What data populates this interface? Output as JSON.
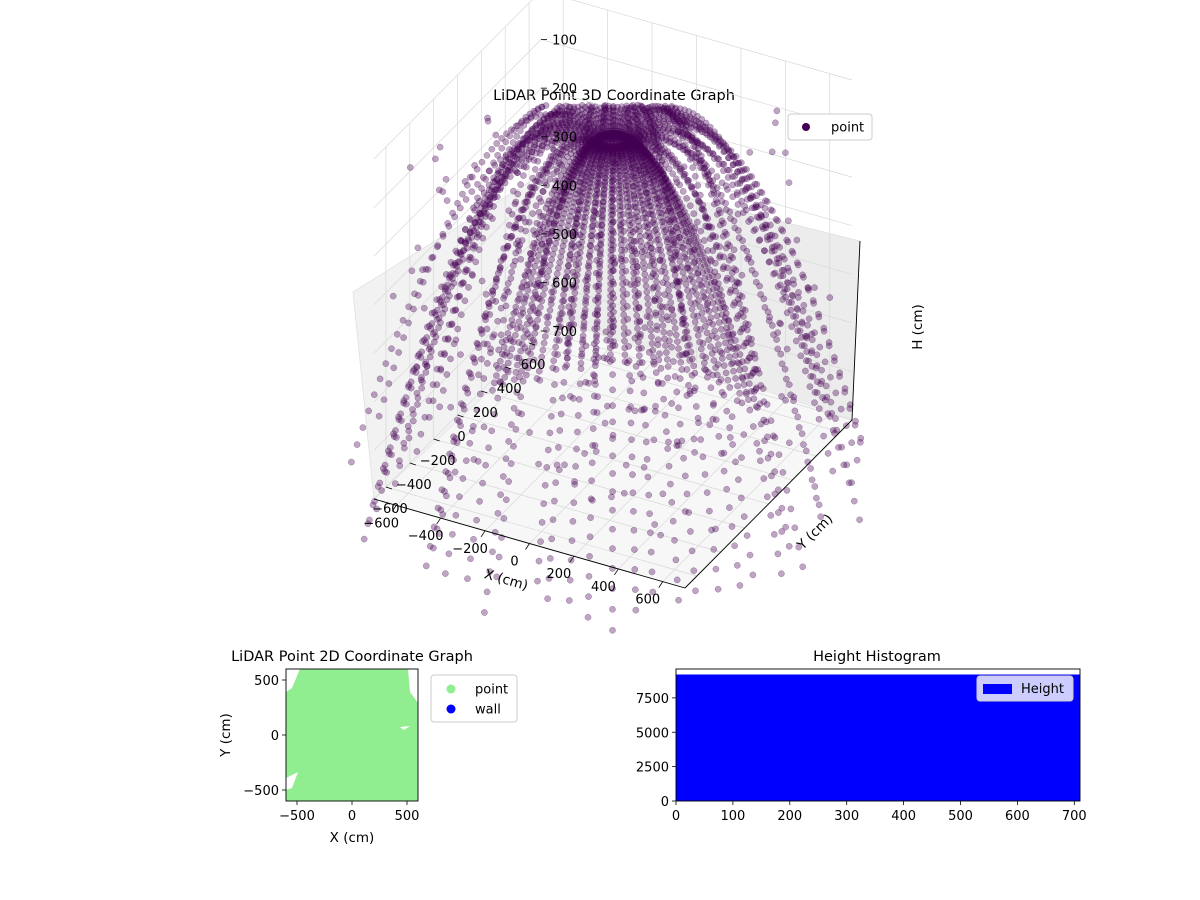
{
  "chart_data": [
    {
      "type": "scatter",
      "projection": "3d",
      "title": "LiDAR Point 3D Coordinate Graph",
      "xlabel": "X (cm)",
      "ylabel": "Y (cm)",
      "zlabel": "H (cm)",
      "xlim": [
        -700,
        700
      ],
      "ylim": [
        -700,
        700
      ],
      "zlim": [
        0,
        700
      ],
      "z_inverted": true,
      "x_ticks": [
        "−600",
        "−400",
        "−200",
        "0",
        "200",
        "400",
        "600"
      ],
      "y_ticks": [
        "−600",
        "−400",
        "−200",
        "0",
        "200",
        "400",
        "600"
      ],
      "z_ticks": [
        "0",
        "100",
        "200",
        "300",
        "400",
        "500",
        "600",
        "700"
      ],
      "legend": {
        "position": "top-right",
        "entries": [
          {
            "label": "point",
            "color": "#440154"
          }
        ]
      },
      "series": [
        {
          "name": "point",
          "color": "#440154",
          "alpha": 0.35,
          "approximate": true,
          "structure": "radial LiDAR scan rings radiating from sensor near origin, bending from ground up toward top of volume",
          "sample_points": [
            [
              -620,
              180,
              30
            ],
            [
              -560,
              60,
              120
            ],
            [
              -500,
              -80,
              250
            ],
            [
              -420,
              -200,
              380
            ],
            [
              -300,
              -320,
              480
            ],
            [
              -150,
              -420,
              560
            ],
            [
              0,
              -450,
              610
            ],
            [
              150,
              -420,
              560
            ],
            [
              300,
              -320,
              480
            ],
            [
              420,
              -200,
              380
            ],
            [
              500,
              -80,
              250
            ],
            [
              560,
              60,
              120
            ],
            [
              620,
              180,
              30
            ],
            [
              0,
              0,
              650
            ],
            [
              50,
              40,
              600
            ],
            [
              -50,
              -40,
              600
            ],
            [
              100,
              200,
              200
            ],
            [
              -100,
              250,
              150
            ],
            [
              200,
              350,
              80
            ],
            [
              -200,
              300,
              100
            ]
          ]
        }
      ]
    },
    {
      "type": "scatter",
      "title": "LiDAR Point 2D Coordinate Graph",
      "xlabel": "X (cm)",
      "ylabel": "Y (cm)",
      "xlim": [
        -600,
        600
      ],
      "ylim": [
        -600,
        600
      ],
      "x_ticks": [
        "−500",
        "0",
        "500"
      ],
      "y_ticks": [
        "−500",
        "0",
        "500"
      ],
      "legend": {
        "position": "outside-right",
        "entries": [
          {
            "label": "point",
            "color": "#90ee90"
          },
          {
            "label": "wall",
            "color": "#0000ff"
          }
        ]
      },
      "series": [
        {
          "name": "point",
          "color": "#90ee90",
          "coverage": "dense fill over entire plotted area"
        },
        {
          "name": "wall",
          "color": "#0000ff",
          "points": []
        }
      ]
    },
    {
      "type": "bar",
      "title": "Height Histogram",
      "xlim": [
        0,
        710
      ],
      "ylim": [
        0,
        9600
      ],
      "x_ticks": [
        "0",
        "100",
        "200",
        "300",
        "400",
        "500",
        "600",
        "700"
      ],
      "y_ticks": [
        "0",
        "2500",
        "5000",
        "7500"
      ],
      "legend": {
        "position": "top-right",
        "entries": [
          {
            "label": "Height",
            "color": "#0000ff"
          }
        ]
      },
      "series": [
        {
          "name": "Height",
          "color": "#0000ff",
          "bin_range": [
            0,
            710
          ],
          "value": 9200
        }
      ]
    }
  ]
}
